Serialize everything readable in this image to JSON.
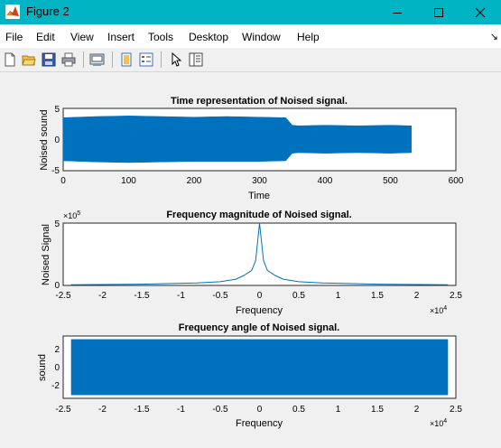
{
  "window": {
    "title": "Figure 2",
    "icon": "matlab-logo-icon"
  },
  "window_controls": {
    "minimize": "minimize-icon",
    "maximize": "maximize-icon",
    "close": "close-icon"
  },
  "menu": [
    "File",
    "Edit",
    "View",
    "Insert",
    "Tools",
    "Desktop",
    "Window",
    "Help"
  ],
  "toolbar": [
    "new-figure-icon",
    "open-file-icon",
    "save-icon",
    "print-icon",
    "print-preview-icon",
    "link-plot-icon",
    "insert-legend-icon",
    "pointer-icon",
    "property-inspector-icon"
  ],
  "colors": {
    "titlebar": "#00b4c3",
    "signal": "#0072bd",
    "axes_bg": "#ffffff",
    "figure_bg": "#f0f0f0"
  },
  "chart_data": [
    {
      "type": "line",
      "title": "Time representation of Noised signal.",
      "xlabel": "Time",
      "ylabel": "Noised sound",
      "xlim": [
        0,
        600
      ],
      "ylim": [
        -5,
        5
      ],
      "xticks": [
        "0",
        "100",
        "200",
        "300",
        "400",
        "500",
        "600"
      ],
      "yticks": [
        "5",
        "0",
        "-5"
      ],
      "envelope": {
        "x": [
          0,
          50,
          100,
          150,
          200,
          250,
          300,
          340,
          350,
          360,
          400,
          450,
          500,
          532
        ],
        "upper": [
          3.5,
          3.7,
          3.8,
          3.7,
          3.6,
          3.7,
          3.6,
          3.5,
          2.3,
          2.2,
          2.3,
          2.2,
          2.3,
          2.2
        ],
        "lower": [
          -3.4,
          -3.6,
          -3.7,
          -3.6,
          -3.5,
          -3.5,
          -3.5,
          -3.4,
          -2.2,
          -2.1,
          -2.2,
          -2.1,
          -2.2,
          -2.1
        ]
      }
    },
    {
      "type": "line",
      "title": "Frequency magnitude of Noised signal.",
      "xlabel": "Frequency",
      "ylabel": "Noised Signal",
      "xlim": [
        -2.5,
        2.5
      ],
      "ylim": [
        0,
        5
      ],
      "x_scale_label": "×10",
      "x_scale_exp": "4",
      "y_scale_label": "×10",
      "y_scale_exp": "5",
      "xticks": [
        "-2.5",
        "-2",
        "-1.5",
        "-1",
        "-0.5",
        "0",
        "0.5",
        "1",
        "1.5",
        "2",
        "2.5"
      ],
      "yticks": [
        "5",
        "0"
      ],
      "x": [
        -2.4,
        -1.5,
        -0.8,
        -0.5,
        -0.3,
        -0.2,
        -0.1,
        -0.05,
        0,
        0.05,
        0.1,
        0.2,
        0.3,
        0.5,
        0.8,
        1.5,
        2.4
      ],
      "y": [
        0.05,
        0.1,
        0.2,
        0.3,
        0.5,
        0.8,
        1.2,
        2.0,
        5.0,
        2.0,
        1.2,
        0.8,
        0.5,
        0.3,
        0.2,
        0.1,
        0.05
      ]
    },
    {
      "type": "area",
      "title": "Frequency angle of Noised signal.",
      "xlabel": "Frequency",
      "ylabel": "sound",
      "xlim": [
        -2.5,
        2.5
      ],
      "ylim": [
        -3.5,
        3.5
      ],
      "x_scale_label": "×10",
      "x_scale_exp": "4",
      "xticks": [
        "-2.5",
        "-2",
        "-1.5",
        "-1",
        "-0.5",
        "0",
        "0.5",
        "1",
        "1.5",
        "2",
        "2.5"
      ],
      "yticks": [
        "2",
        "0",
        "-2"
      ],
      "fill_range": {
        "x": [
          -2.4,
          2.4
        ],
        "y": [
          -3.14,
          3.14
        ]
      }
    }
  ]
}
